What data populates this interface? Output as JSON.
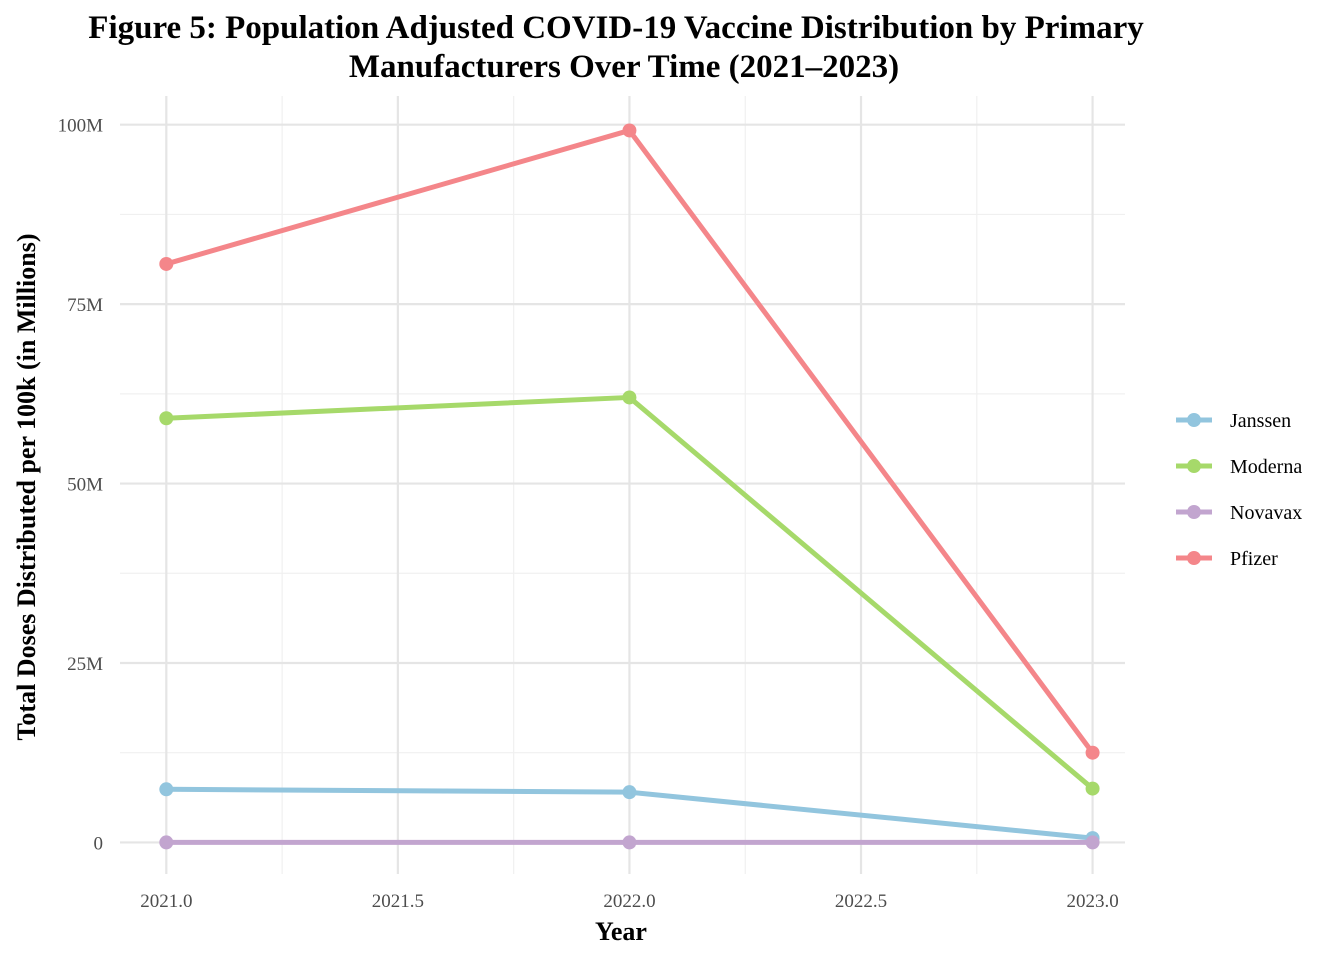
{
  "chart_data": {
    "type": "line",
    "title_lines": [
      "Figure 5: Population Adjusted COVID-19 Vaccine Distribution by Primary",
      "Manufacturers Over Time (2021–2023)"
    ],
    "xlabel": "Year",
    "ylabel": "Total Doses Distributed per 100k (in Millions)",
    "x": [
      2021,
      2022,
      2023
    ],
    "xlim": [
      2020.9,
      2023.07
    ],
    "ylim": [
      -4.4,
      104
    ],
    "x_ticks": [
      2021.0,
      2021.5,
      2022.0,
      2022.5,
      2023.0
    ],
    "x_tick_labels": [
      "2021.0",
      "2021.5",
      "2022.0",
      "2022.5",
      "2023.0"
    ],
    "y_ticks": [
      0,
      25,
      50,
      75,
      100
    ],
    "y_tick_labels": [
      "0",
      "25M",
      "50M",
      "75M",
      "100M"
    ],
    "grid": true,
    "legend_position": "right",
    "series": [
      {
        "name": "Janssen",
        "color": "#92c5de",
        "values": [
          7.4,
          7.0,
          0.6
        ]
      },
      {
        "name": "Moderna",
        "color": "#a6d96a",
        "values": [
          59.1,
          62.0,
          7.5
        ]
      },
      {
        "name": "Novavax",
        "color": "#c2a5cf",
        "values": [
          0.0,
          0.0,
          0.0
        ]
      },
      {
        "name": "Pfizer",
        "color": "#f4868a",
        "values": [
          80.6,
          99.2,
          12.5
        ]
      }
    ]
  }
}
